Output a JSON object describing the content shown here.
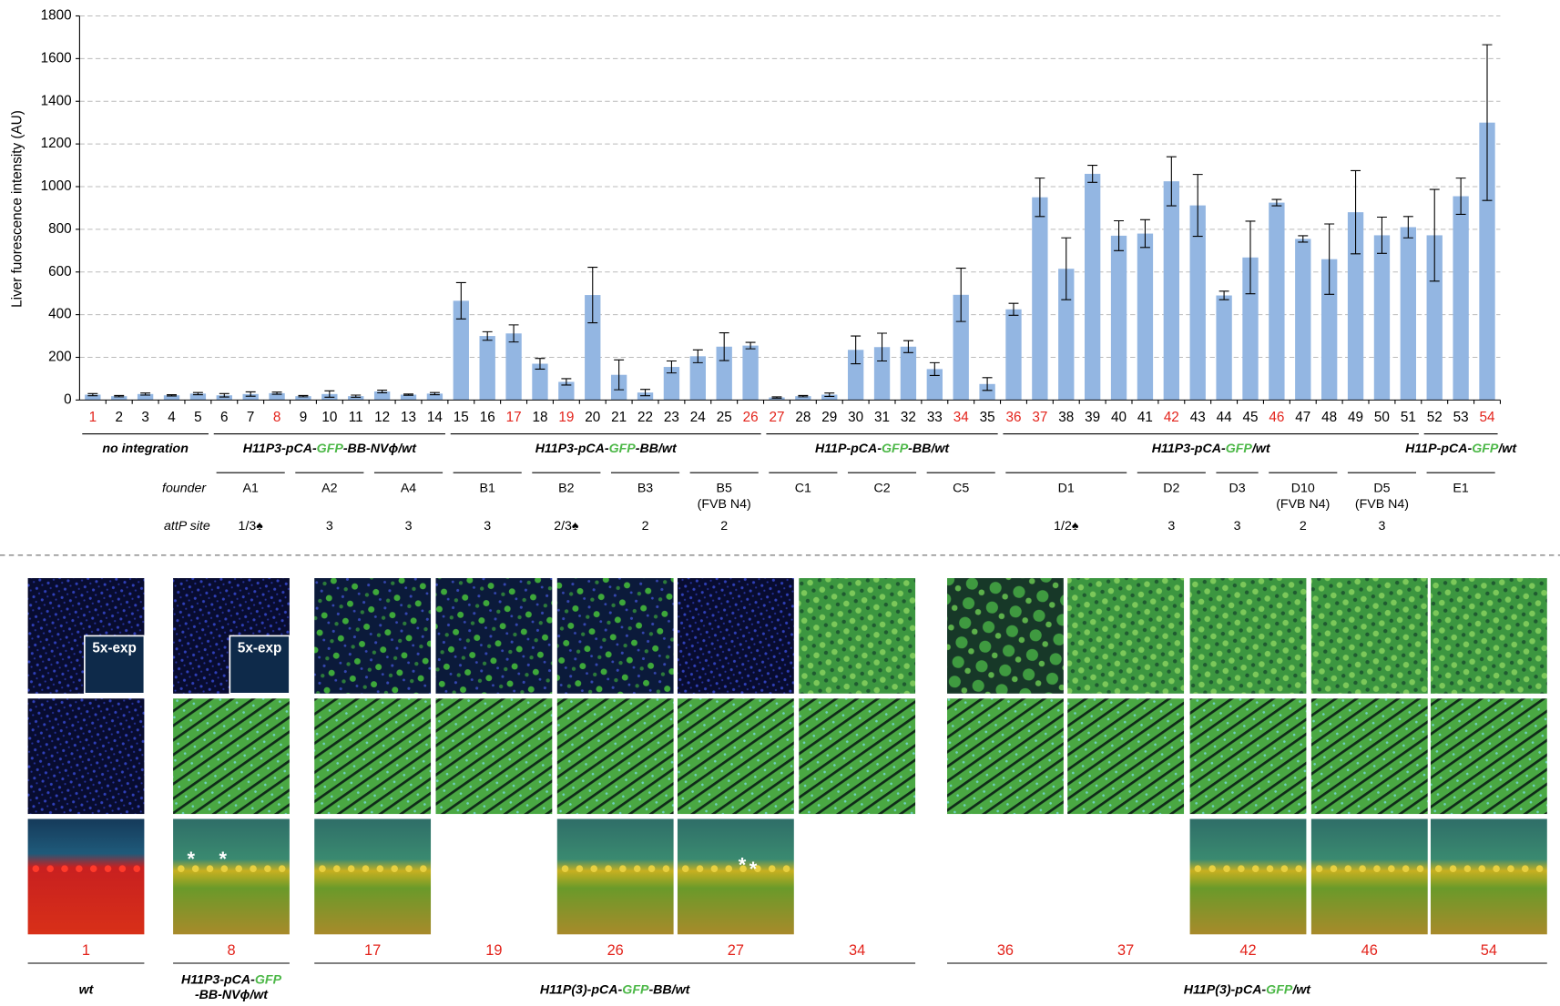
{
  "chart_data": {
    "type": "bar",
    "y_label": "Liver fuorescence intensity (AU)",
    "categories": [
      "1",
      "2",
      "3",
      "4",
      "5",
      "6",
      "7",
      "8",
      "9",
      "10",
      "11",
      "12",
      "13",
      "14",
      "15",
      "16",
      "17",
      "18",
      "19",
      "20",
      "21",
      "22",
      "23",
      "24",
      "25",
      "26",
      "27",
      "28",
      "29",
      "30",
      "31",
      "32",
      "33",
      "34",
      "35",
      "36",
      "37",
      "38",
      "39",
      "40",
      "41",
      "42",
      "43",
      "44",
      "45",
      "46",
      "47",
      "48",
      "49",
      "50",
      "51",
      "52",
      "53",
      "54"
    ],
    "category_label_colors": [
      "#e3231b",
      "#000",
      "#000",
      "#000",
      "#000",
      "#000",
      "#000",
      "#e3231b",
      "#000",
      "#000",
      "#000",
      "#000",
      "#000",
      "#000",
      "#000",
      "#000",
      "#e3231b",
      "#000",
      "#e3231b",
      "#000",
      "#000",
      "#000",
      "#000",
      "#000",
      "#000",
      "#e3231b",
      "#e3231b",
      "#000",
      "#000",
      "#000",
      "#000",
      "#000",
      "#000",
      "#e3231b",
      "#000",
      "#e3231b",
      "#e3231b",
      "#000",
      "#000",
      "#000",
      "#000",
      "#e3231b",
      "#000",
      "#000",
      "#000",
      "#e3231b",
      "#000",
      "#000",
      "#000",
      "#000",
      "#000",
      "#000",
      "#000",
      "#e3231b"
    ],
    "values": [
      25,
      18,
      28,
      22,
      30,
      22,
      28,
      32,
      18,
      28,
      18,
      40,
      25,
      30,
      465,
      300,
      312,
      170,
      85,
      492,
      118,
      35,
      155,
      205,
      250,
      255,
      12,
      18,
      25,
      235,
      248,
      250,
      145,
      493,
      75,
      425,
      950,
      615,
      1060,
      770,
      780,
      1025,
      912,
      490,
      668,
      925,
      755,
      660,
      880,
      772,
      810,
      772,
      955,
      1300
    ],
    "errors": [
      5,
      3,
      5,
      3,
      5,
      8,
      10,
      5,
      3,
      15,
      5,
      6,
      3,
      5,
      85,
      20,
      40,
      25,
      15,
      130,
      70,
      15,
      28,
      30,
      65,
      15,
      3,
      3,
      8,
      65,
      65,
      28,
      30,
      125,
      30,
      28,
      90,
      145,
      40,
      70,
      65,
      115,
      145,
      20,
      170,
      15,
      15,
      165,
      195,
      85,
      50,
      215,
      85,
      365
    ],
    "color": "#93b6e2",
    "ylim": [
      0,
      1800
    ],
    "yticks": [
      0,
      200,
      400,
      600,
      800,
      1000,
      1200,
      1400,
      1600,
      1800
    ],
    "grid": true
  },
  "annotations": {
    "highlight_color": "#4db848",
    "groups": [
      {
        "parts": [
          "no integration"
        ]
      },
      {
        "parts": [
          "H11P3-pCA-",
          "GFP",
          "-BB-NVϕ/wt"
        ]
      },
      {
        "parts": [
          "H11P3-pCA-",
          "GFP",
          "-BB/wt"
        ]
      },
      {
        "parts": [
          "H11P-pCA-",
          "GFP",
          "-BB/wt"
        ]
      },
      {
        "parts": [
          "H11P3-pCA-",
          "GFP",
          "/wt"
        ]
      },
      {
        "parts": [
          "H11P-pCA-",
          "GFP",
          "/wt"
        ]
      }
    ],
    "founder_label": "founder",
    "attp_label": "attP site",
    "founders": [
      {
        "name": "A1",
        "attp": "1/3♠"
      },
      {
        "name": "A2",
        "attp": "3"
      },
      {
        "name": "A4",
        "attp": "3"
      },
      {
        "name": "B1",
        "attp": "3"
      },
      {
        "name": "B2",
        "attp": "2/3♠"
      },
      {
        "name": "B3",
        "attp": "2"
      },
      {
        "name": "B5",
        "note": "(FVB N4)",
        "attp": "2"
      },
      {
        "name": "C1"
      },
      {
        "name": "C2"
      },
      {
        "name": "C5"
      },
      {
        "name": "D1",
        "attp": "1/2♠"
      },
      {
        "name": "D2",
        "attp": "3"
      },
      {
        "name": "D3",
        "attp": "3"
      },
      {
        "name": "D10",
        "note": "(FVB N4)",
        "attp": "2"
      },
      {
        "name": "D5",
        "note": "(FVB N4)",
        "attp": "3"
      },
      {
        "name": "E1"
      }
    ]
  },
  "panels": {
    "label_color": "#e3231b",
    "columns": [
      {
        "label": "1",
        "inset": "5x-exp"
      },
      {
        "label": "8",
        "inset": "5x-exp",
        "stars": [
          "*",
          "*"
        ]
      },
      {
        "label": "17"
      },
      {
        "label": "19"
      },
      {
        "label": "26"
      },
      {
        "label": "27",
        "stars": [
          "*",
          "*"
        ]
      },
      {
        "label": "34"
      },
      {
        "label": "36"
      },
      {
        "label": "37"
      },
      {
        "label": "42"
      },
      {
        "label": "46"
      },
      {
        "label": "54"
      }
    ],
    "groups": [
      {
        "lines": [
          [
            "wt"
          ]
        ]
      },
      {
        "lines": [
          [
            "H11P3-pCA-",
            "GFP"
          ],
          [
            "-BB-NVϕ/wt"
          ]
        ]
      },
      {
        "lines": [
          [
            "H11P(3)-pCA-",
            "GFP",
            "-BB/wt"
          ]
        ]
      },
      {
        "lines": [
          [
            "H11P(3)-pCA-",
            "GFP",
            "/wt"
          ]
        ]
      }
    ]
  }
}
